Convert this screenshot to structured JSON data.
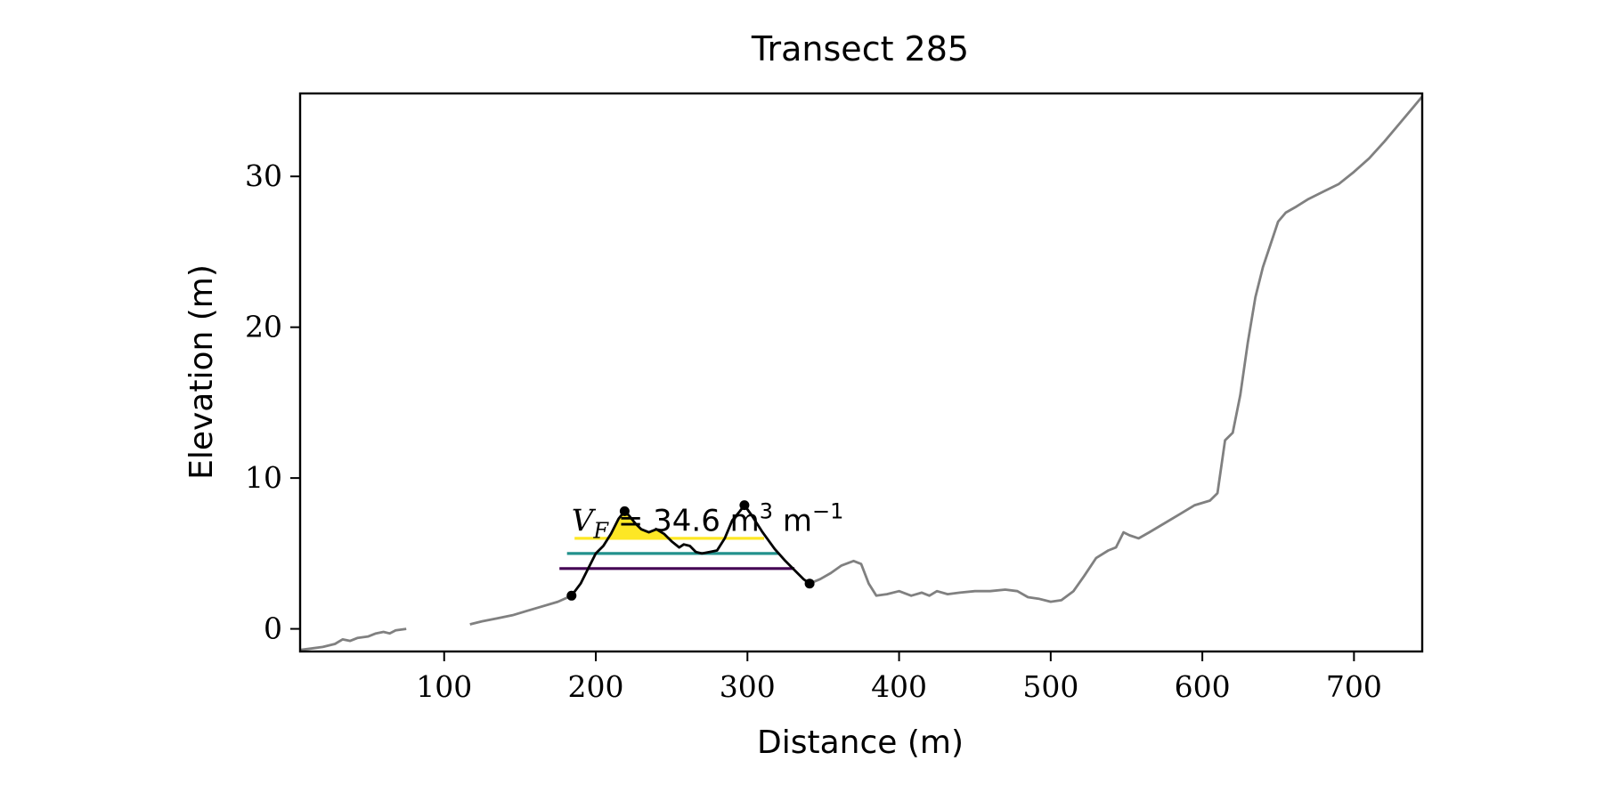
{
  "chart_data": {
    "type": "line",
    "title": "Transect 285",
    "xlabel": "Distance (m)",
    "ylabel": "Elevation (m)",
    "xlim": [
      5,
      745
    ],
    "ylim": [
      -1.5,
      35.5
    ],
    "xticks": [
      100,
      200,
      300,
      400,
      500,
      600,
      700
    ],
    "yticks": [
      0,
      10,
      20,
      30
    ],
    "grid": false,
    "colors": {
      "profile": "#808080",
      "dune": "#000000",
      "base_fill": "#cccccc",
      "level_1": "#440154",
      "fill_1": "#482878",
      "level_2": "#21918c",
      "fill_2": "#2a9d8f",
      "level_3": "#fde725",
      "fill_3": "#fde725"
    },
    "profile_segments": [
      [
        [
          5,
          -1.4
        ],
        [
          20,
          -1.2
        ],
        [
          28,
          -1.0
        ],
        [
          33,
          -0.7
        ],
        [
          38,
          -0.8
        ],
        [
          43,
          -0.6
        ],
        [
          50,
          -0.5
        ],
        [
          55,
          -0.3
        ],
        [
          60,
          -0.2
        ],
        [
          64,
          -0.3
        ],
        [
          68,
          -0.1
        ],
        [
          75,
          0.0
        ]
      ],
      [
        [
          117,
          0.3
        ],
        [
          125,
          0.5
        ],
        [
          135,
          0.7
        ],
        [
          145,
          0.9
        ],
        [
          155,
          1.2
        ],
        [
          165,
          1.5
        ],
        [
          175,
          1.8
        ],
        [
          184,
          2.2
        ]
      ],
      [
        [
          341,
          3.0
        ],
        [
          348,
          3.3
        ],
        [
          355,
          3.7
        ],
        [
          362,
          4.2
        ],
        [
          370,
          4.5
        ],
        [
          375,
          4.3
        ],
        [
          380,
          3.0
        ],
        [
          385,
          2.2
        ],
        [
          392,
          2.3
        ],
        [
          400,
          2.5
        ],
        [
          408,
          2.2
        ],
        [
          415,
          2.4
        ],
        [
          420,
          2.2
        ],
        [
          425,
          2.5
        ],
        [
          432,
          2.3
        ],
        [
          440,
          2.4
        ],
        [
          450,
          2.5
        ],
        [
          460,
          2.5
        ],
        [
          470,
          2.6
        ],
        [
          478,
          2.5
        ],
        [
          485,
          2.1
        ],
        [
          492,
          2.0
        ],
        [
          500,
          1.8
        ],
        [
          507,
          1.9
        ],
        [
          515,
          2.5
        ],
        [
          522,
          3.5
        ],
        [
          530,
          4.7
        ],
        [
          538,
          5.2
        ],
        [
          543,
          5.4
        ],
        [
          548,
          6.4
        ],
        [
          552,
          6.2
        ],
        [
          558,
          6.0
        ],
        [
          565,
          6.4
        ],
        [
          575,
          7.0
        ],
        [
          585,
          7.6
        ],
        [
          595,
          8.2
        ],
        [
          605,
          8.5
        ],
        [
          610,
          9.0
        ],
        [
          615,
          12.5
        ],
        [
          620,
          13.0
        ],
        [
          625,
          15.5
        ],
        [
          630,
          19.0
        ],
        [
          635,
          22.0
        ],
        [
          640,
          24.0
        ],
        [
          645,
          25.5
        ],
        [
          650,
          27.0
        ],
        [
          655,
          27.6
        ],
        [
          662,
          28.0
        ],
        [
          670,
          28.5
        ],
        [
          680,
          29.0
        ],
        [
          690,
          29.5
        ],
        [
          700,
          30.3
        ],
        [
          710,
          31.2
        ],
        [
          720,
          32.3
        ],
        [
          730,
          33.5
        ],
        [
          740,
          34.7
        ],
        [
          745,
          35.3
        ]
      ]
    ],
    "dune_profile": [
      [
        184,
        2.2
      ],
      [
        190,
        3.0
      ],
      [
        195,
        4.0
      ],
      [
        200,
        5.0
      ],
      [
        205,
        5.5
      ],
      [
        210,
        6.3
      ],
      [
        215,
        7.3
      ],
      [
        219,
        7.8
      ],
      [
        222,
        7.5
      ],
      [
        226,
        7.0
      ],
      [
        230,
        6.6
      ],
      [
        235,
        6.4
      ],
      [
        240,
        6.6
      ],
      [
        245,
        6.3
      ],
      [
        250,
        5.8
      ],
      [
        255,
        5.4
      ],
      [
        258,
        5.6
      ],
      [
        262,
        5.5
      ],
      [
        266,
        5.1
      ],
      [
        270,
        5.0
      ],
      [
        275,
        5.1
      ],
      [
        280,
        5.2
      ],
      [
        285,
        6.0
      ],
      [
        290,
        7.2
      ],
      [
        295,
        7.8
      ],
      [
        298,
        8.2
      ],
      [
        303,
        7.5
      ],
      [
        310,
        6.4
      ],
      [
        318,
        5.3
      ],
      [
        325,
        4.5
      ],
      [
        332,
        3.8
      ],
      [
        337,
        3.3
      ],
      [
        341,
        3.0
      ]
    ],
    "dune_points": [
      [
        184,
        2.2
      ],
      [
        219,
        7.8
      ],
      [
        298,
        8.2
      ],
      [
        341,
        3.0
      ]
    ],
    "base_line": [
      [
        184,
        2.2
      ],
      [
        341,
        3.0
      ]
    ],
    "levels": [
      {
        "elevation": 4.0,
        "x_start": 176,
        "x_end": 331
      },
      {
        "elevation": 5.0,
        "x_start": 181,
        "x_end": 321
      },
      {
        "elevation": 6.0,
        "x_start": 186,
        "x_end": 311
      }
    ],
    "annotation": {
      "var": "V",
      "sub": "F",
      "value_text": " = 34.6 m",
      "exp1": "3",
      "mid_text": " m",
      "exp2": "−1",
      "x": 184,
      "y": 6.5
    }
  }
}
